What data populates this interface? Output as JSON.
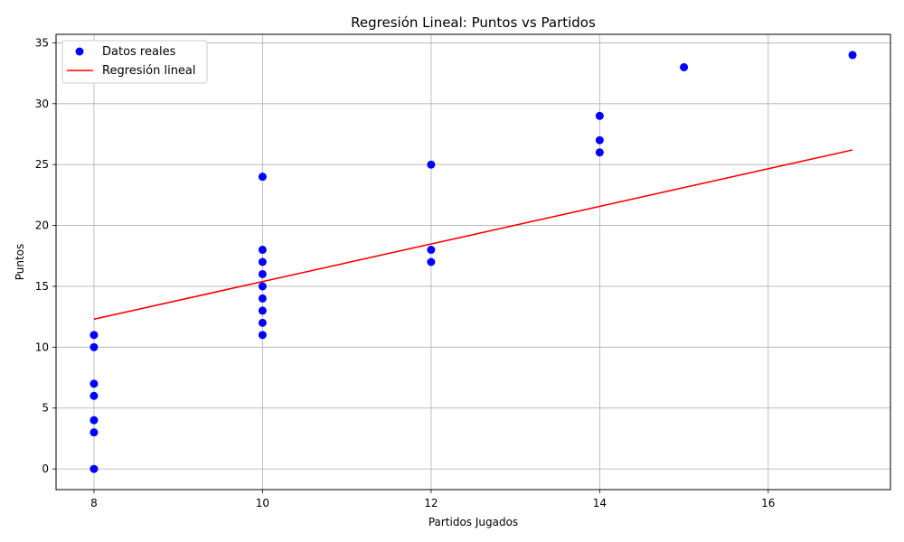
{
  "chart_data": {
    "type": "scatter",
    "title": "Regresión Lineal: Puntos vs Partidos",
    "xlabel": "Partidos Jugados",
    "ylabel": "Puntos",
    "xlim": [
      7.55,
      17.45
    ],
    "ylim": [
      -1.7,
      35.7
    ],
    "xticks": [
      8,
      10,
      12,
      14,
      16
    ],
    "yticks": [
      0,
      5,
      10,
      15,
      20,
      25,
      30,
      35
    ],
    "grid": true,
    "legend_position": "top-left",
    "series": [
      {
        "name": "Datos reales",
        "kind": "scatter",
        "color": "#0000ff",
        "points": [
          [
            8,
            0
          ],
          [
            8,
            3
          ],
          [
            8,
            4
          ],
          [
            8,
            6
          ],
          [
            8,
            7
          ],
          [
            8,
            10
          ],
          [
            8,
            11
          ],
          [
            10,
            11
          ],
          [
            10,
            12
          ],
          [
            10,
            13
          ],
          [
            10,
            14
          ],
          [
            10,
            15
          ],
          [
            10,
            16
          ],
          [
            10,
            17
          ],
          [
            10,
            18
          ],
          [
            10,
            24
          ],
          [
            12,
            17
          ],
          [
            12,
            18
          ],
          [
            12,
            25
          ],
          [
            14,
            26
          ],
          [
            14,
            27
          ],
          [
            14,
            29
          ],
          [
            15,
            33
          ],
          [
            17,
            34
          ]
        ]
      },
      {
        "name": "Regresión lineal",
        "kind": "line",
        "color": "#ff0000",
        "points": [
          [
            8,
            12.3
          ],
          [
            17,
            26.2
          ]
        ]
      }
    ]
  }
}
